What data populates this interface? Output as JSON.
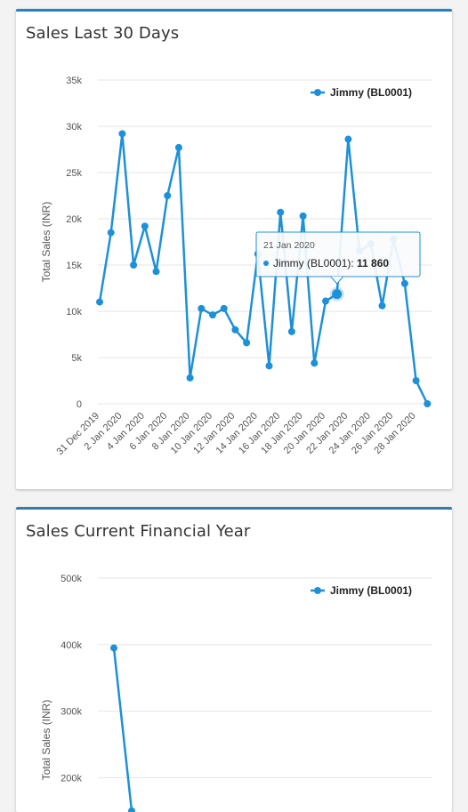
{
  "colors": {
    "series": "#1e90d8",
    "grid": "#e6e6e6",
    "card_border": "#2e7fb6"
  },
  "chart_data": [
    {
      "type": "line",
      "title": "Sales Last 30 Days",
      "ylabel": "Total Sales (INR)",
      "xlabel": "",
      "ylim": [
        0,
        35000
      ],
      "yticks": [
        0,
        5000,
        10000,
        15000,
        20000,
        25000,
        30000,
        35000
      ],
      "ytick_labels": [
        "0",
        "5k",
        "10k",
        "15k",
        "20k",
        "25k",
        "30k",
        "35k"
      ],
      "x_tick_labels": [
        "31 Dec 2019",
        "2 Jan 2020",
        "4 Jan 2020",
        "6 Jan 2020",
        "8 Jan 2020",
        "10 Jan 2020",
        "12 Jan 2020",
        "14 Jan 2020",
        "16 Jan 2020",
        "18 Jan 2020",
        "20 Jan 2020",
        "22 Jan 2020",
        "24 Jan 2020",
        "26 Jan 2020",
        "28 Jan 2020"
      ],
      "grid": true,
      "legend": "top-right",
      "series": [
        {
          "name": "Jimmy (BL0001)",
          "values": [
            11000,
            18500,
            29200,
            15000,
            19200,
            14300,
            22500,
            27700,
            2800,
            10300,
            9600,
            10300,
            8000,
            6600,
            16200,
            4100,
            20700,
            7800,
            20300,
            4400,
            11100,
            11860,
            28600,
            16500,
            17300,
            10600,
            17800,
            13000,
            2500,
            0
          ]
        }
      ],
      "tooltip": {
        "index": 21,
        "date": "21 Jan 2020",
        "series_label": "Jimmy (BL0001): ",
        "value_label": "11 860"
      }
    },
    {
      "type": "line",
      "title": "Sales Current Financial Year",
      "ylabel": "Total Sales (INR)",
      "xlabel": "",
      "ylim": [
        0,
        500000
      ],
      "yticks": [
        200000,
        300000,
        400000,
        500000
      ],
      "ytick_labels": [
        "200k",
        "300k",
        "400k",
        "500k"
      ],
      "grid": true,
      "legend": "top-right",
      "series": [
        {
          "name": "Jimmy (BL0001)",
          "values": [
            395000,
            150000
          ]
        }
      ]
    }
  ]
}
